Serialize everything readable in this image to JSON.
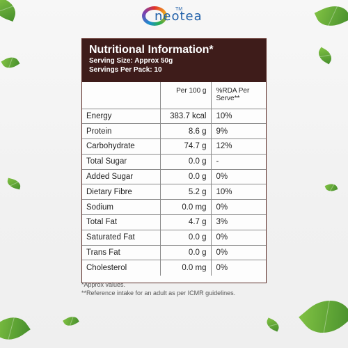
{
  "brand": {
    "name": "neotea",
    "tm": "TM"
  },
  "panel": {
    "title": "Nutritional Information*",
    "serving_size": "Serving Size: Approx 50g",
    "servings_per_pack": "Servings Per Pack: 10"
  },
  "table": {
    "headers": [
      "",
      "Per 100 g",
      "%RDA Per Serve**"
    ],
    "rows": [
      [
        "Energy",
        "383.7 kcal",
        "10%"
      ],
      [
        "Protein",
        "8.6 g",
        "9%"
      ],
      [
        "Carbohydrate",
        "74.7 g",
        "12%"
      ],
      [
        "Total Sugar",
        "0.0 g",
        "-"
      ],
      [
        "Added Sugar",
        "0.0 g",
        "0%"
      ],
      [
        "Dietary Fibre",
        "5.2 g",
        "10%"
      ],
      [
        "Sodium",
        "0.0 mg",
        "0%"
      ],
      [
        "Total Fat",
        "4.7 g",
        "3%"
      ],
      [
        "Saturated Fat",
        "0.0 g",
        "0%"
      ],
      [
        "Trans Fat",
        "0.0 g",
        "0%"
      ],
      [
        "Cholesterol",
        "0.0 mg",
        "0%"
      ]
    ]
  },
  "footnotes": [
    "*Approx values.",
    "**Reference intake for an adult as per ICMR guidelines."
  ]
}
